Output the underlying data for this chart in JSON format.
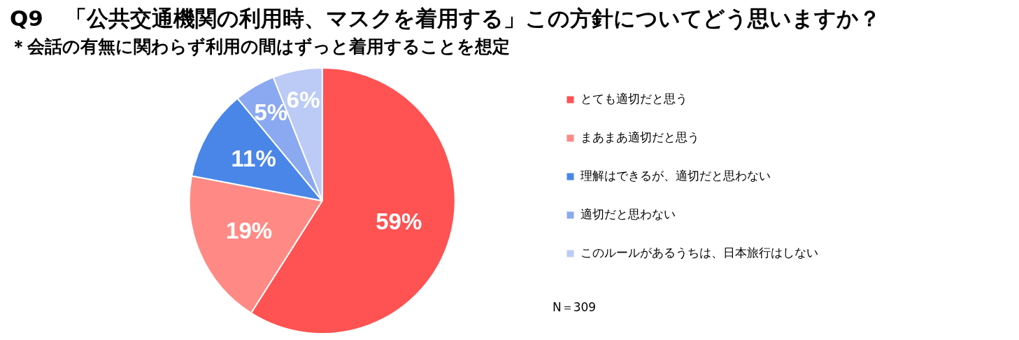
{
  "chart_data": {
    "type": "pie",
    "title": "Q9　「公共交通機関の利用時、マスクを着用する」この方針についてどう思いますか？",
    "subtitle": "＊会話の有無に関わらず利用の間はずっと着用することを想定",
    "categories": [
      "とても適切だと思う",
      "まあまあ適切だと思う",
      "理解はできるが、適切だと思わない",
      "適切だと思わない",
      "このルールがあるうちは、日本旅行はしない"
    ],
    "values": [
      59,
      19,
      11,
      5,
      6
    ],
    "colors": [
      "#ff5252",
      "#ff8a85",
      "#4a86e8",
      "#8ba9f0",
      "#bccaf6"
    ],
    "value_labels": [
      "59%",
      "19%",
      "11%",
      "5%",
      "6%"
    ],
    "legend": "right",
    "annotations": [
      "N＝309"
    ]
  }
}
